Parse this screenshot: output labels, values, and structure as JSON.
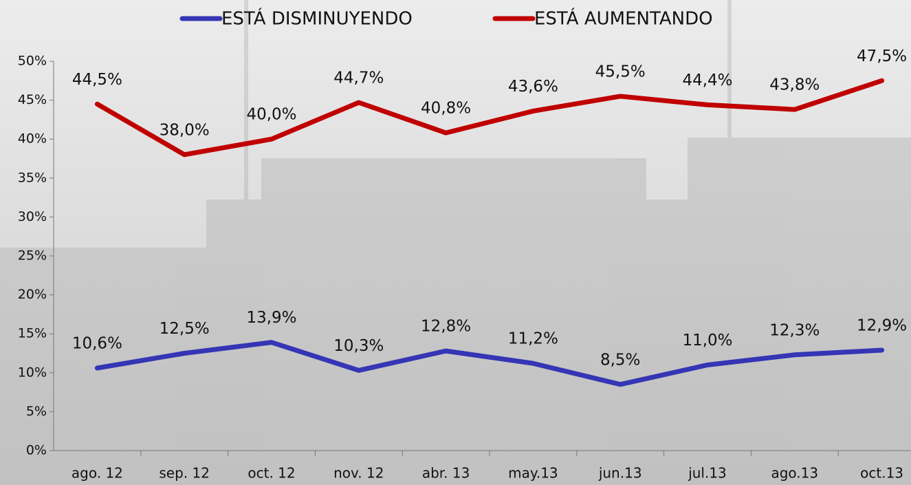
{
  "chart_data": {
    "type": "line",
    "categories": [
      "ago. 12",
      "sep. 12",
      "oct. 12",
      "nov. 12",
      "abr. 13",
      "may.13",
      "jun.13",
      "jul.13",
      "ago.13",
      "oct.13"
    ],
    "series": [
      {
        "name": "ESTÁ DISMINUYENDO",
        "color": "#3535b5",
        "values": [
          10.6,
          12.5,
          13.9,
          10.3,
          12.8,
          11.2,
          8.5,
          11.0,
          12.3,
          12.9
        ],
        "value_labels": [
          "10,6%",
          "12,5%",
          "13,9%",
          "10,3%",
          "12,8%",
          "11,2%",
          "8,5%",
          "11,0%",
          "12,3%",
          "12,9%"
        ]
      },
      {
        "name": "ESTÁ AUMENTANDO",
        "color": "#c00000",
        "values": [
          44.5,
          38.0,
          40.0,
          44.7,
          40.8,
          43.6,
          45.5,
          44.4,
          43.8,
          47.5
        ],
        "value_labels": [
          "44,5%",
          "38,0%",
          "40,0%",
          "44,7%",
          "40,8%",
          "43,6%",
          "45,5%",
          "44,4%",
          "43,8%",
          "47,5%"
        ]
      }
    ],
    "ylim": [
      0,
      50
    ],
    "yticks": [
      {
        "value": 0,
        "label": "0%"
      },
      {
        "value": 5,
        "label": "5%"
      },
      {
        "value": 10,
        "label": "10%"
      },
      {
        "value": 15,
        "label": "15%"
      },
      {
        "value": 20,
        "label": "20%"
      },
      {
        "value": 25,
        "label": "25%"
      },
      {
        "value": 30,
        "label": "30%"
      },
      {
        "value": 35,
        "label": "35%"
      },
      {
        "value": 40,
        "label": "40%"
      },
      {
        "value": 45,
        "label": "45%"
      },
      {
        "value": 50,
        "label": "50%"
      }
    ]
  }
}
